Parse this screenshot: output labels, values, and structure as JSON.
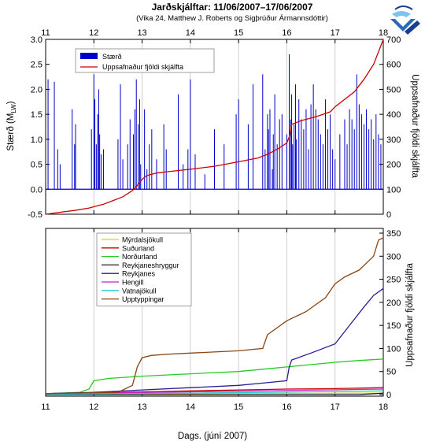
{
  "header": {
    "title": "Jarðskjálftar: 11/06/2007–17/06/2007",
    "subtitle": "(Vika 24, Matthew J. Roberts og Sigþrúður Ármannsdóttir)"
  },
  "logo": {
    "name": "vedurstofa-logo",
    "colors": [
      "#2a6bb8",
      "#7fc4e8",
      "#1a3f8f"
    ]
  },
  "chart_data": [
    {
      "type": "bar",
      "panel": "top",
      "xlim": [
        11,
        18
      ],
      "x_ticks": [
        "11",
        "12",
        "13",
        "14",
        "15",
        "16",
        "17",
        "18"
      ],
      "ylabel": "Stærð (M",
      "ylabel_sub": "LW",
      "ylabel_end": ")",
      "ylim": [
        -0.5,
        3.0
      ],
      "y_ticks": [
        "-0.5",
        "0.0",
        "0.5",
        "1.0",
        "1.5",
        "2.0",
        "2.5",
        "3.0"
      ],
      "y2label": "Uppsafnaður fjöldi skjálfta",
      "y2lim": [
        0,
        700
      ],
      "y2_ticks": [
        "0",
        "100",
        "200",
        "300",
        "400",
        "500",
        "600",
        "700"
      ],
      "grid": "vertical",
      "legend_placement": "top-left",
      "legend": [
        {
          "name": "Stærð",
          "color": "#0000cc"
        },
        {
          "name": "Uppsafnaður fjöldi skjálfta",
          "color": "#cc0000"
        }
      ],
      "bars": {
        "name": "Stærð",
        "color": "#0000cc",
        "x": [
          11.05,
          11.18,
          11.25,
          11.3,
          11.55,
          11.6,
          11.62,
          11.95,
          12.0,
          12.02,
          12.05,
          12.08,
          12.1,
          12.12,
          12.15,
          12.2,
          12.5,
          12.55,
          12.6,
          12.7,
          12.75,
          12.82,
          12.85,
          12.88,
          12.92,
          12.95,
          12.97,
          13.05,
          13.1,
          13.15,
          13.2,
          13.3,
          13.45,
          13.5,
          13.75,
          13.85,
          13.95,
          14.0,
          14.1,
          14.3,
          14.5,
          14.7,
          14.95,
          15.0,
          15.2,
          15.3,
          15.5,
          15.55,
          15.6,
          15.62,
          15.65,
          15.7,
          15.72,
          15.75,
          15.8,
          15.85,
          15.9,
          16.0,
          16.05,
          16.08,
          16.1,
          16.12,
          16.15,
          16.18,
          16.2,
          16.25,
          16.3,
          16.35,
          16.4,
          16.45,
          16.5,
          16.55,
          16.6,
          16.65,
          16.7,
          16.75,
          16.8,
          16.85,
          16.9,
          16.95,
          17.0,
          17.1,
          17.2,
          17.25,
          17.3,
          17.35,
          17.4,
          17.45,
          17.5,
          17.55,
          17.6,
          17.65,
          17.7,
          17.75,
          17.8,
          17.85,
          17.9,
          17.95
        ],
        "values": [
          2.2,
          2.15,
          0.8,
          0.5,
          1.6,
          0.9,
          1.3,
          1.2,
          2.3,
          1.8,
          0.9,
          1.5,
          2.0,
          1.1,
          0.7,
          0.8,
          1.0,
          2.1,
          0.6,
          0.9,
          1.4,
          1.1,
          1.6,
          2.2,
          1.3,
          1.8,
          0.5,
          1.6,
          0.4,
          0.9,
          1.2,
          0.6,
          1.3,
          0.8,
          1.9,
          0.5,
          0.8,
          2.2,
          0.7,
          0.3,
          1.2,
          0.9,
          1.5,
          1.8,
          1.3,
          2.1,
          2.3,
          0.8,
          1.5,
          1.2,
          1.6,
          0.4,
          1.1,
          1.9,
          0.9,
          1.4,
          1.5,
          1.1,
          2.7,
          1.4,
          1.9,
          0.9,
          1.3,
          2.1,
          1.0,
          1.8,
          1.4,
          1.2,
          1.6,
          0.8,
          1.7,
          2.1,
          1.6,
          1.4,
          1.1,
          0.9,
          1.8,
          1.2,
          1.5,
          0.8,
          0.6,
          1.1,
          1.4,
          0.9,
          1.6,
          1.4,
          1.2,
          2.3,
          1.7,
          1.5,
          1.3,
          1.6,
          1.2,
          1.4,
          1.0,
          1.5,
          1.1,
          0.9
        ]
      },
      "line": {
        "name": "Uppsafnaður fjöldi skjálfta",
        "color": "#cc0000",
        "x": [
          11.0,
          11.3,
          11.6,
          11.9,
          12.0,
          12.2,
          12.4,
          12.6,
          12.8,
          12.9,
          13.0,
          13.1,
          13.3,
          13.6,
          14.0,
          14.5,
          15.0,
          15.4,
          15.6,
          15.8,
          16.0,
          16.05,
          16.1,
          16.3,
          16.6,
          16.9,
          17.0,
          17.2,
          17.4,
          17.6,
          17.8,
          17.9,
          18.0
        ],
        "values": [
          0,
          8,
          15,
          25,
          30,
          40,
          55,
          70,
          95,
          115,
          140,
          155,
          165,
          172,
          180,
          192,
          210,
          225,
          240,
          260,
          285,
          310,
          360,
          375,
          390,
          410,
          430,
          460,
          490,
          540,
          600,
          650,
          700
        ]
      }
    },
    {
      "type": "line",
      "panel": "bottom",
      "xlim": [
        11,
        18
      ],
      "x_ticks": [
        "11",
        "12",
        "13",
        "14",
        "15",
        "16",
        "17",
        "18"
      ],
      "xlabel": "Dags. (júní 2007)",
      "y2label": "Uppsafnaður fjöldi skjálfta",
      "y2lim": [
        0,
        350
      ],
      "y2_ticks": [
        "0",
        "50",
        "100",
        "150",
        "200",
        "250",
        "300",
        "350"
      ],
      "grid": "vertical",
      "legend_placement": "top-left",
      "series": [
        {
          "name": "Mýrdalsjökull",
          "color": "#e6d200",
          "x": [
            11.0,
            14.0,
            18.0
          ],
          "values": [
            1,
            2,
            3
          ]
        },
        {
          "name": "Suðurland",
          "color": "#cc0000",
          "x": [
            11.0,
            12.0,
            13.0,
            14.0,
            15.0,
            16.0,
            17.0,
            18.0
          ],
          "values": [
            2,
            4,
            6,
            8,
            10,
            12,
            13,
            15
          ]
        },
        {
          "name": "Norðurland",
          "color": "#22cc22",
          "x": [
            11.0,
            11.5,
            11.7,
            11.9,
            12.0,
            12.3,
            13.0,
            14.0,
            15.0,
            15.5,
            16.0,
            16.5,
            17.0,
            17.5,
            18.0
          ],
          "values": [
            2,
            4,
            5,
            12,
            30,
            35,
            40,
            45,
            50,
            55,
            60,
            65,
            70,
            74,
            77
          ]
        },
        {
          "name": "Reykjaneshryggur",
          "color": "#202020",
          "x": [
            11.0,
            17.5,
            18.0
          ],
          "values": [
            0,
            0,
            3
          ]
        },
        {
          "name": "Reykjanes",
          "color": "#2a1a99",
          "x": [
            11.0,
            12.0,
            13.0,
            14.0,
            15.0,
            15.5,
            16.0,
            16.05,
            16.1,
            16.5,
            17.0,
            17.3,
            17.6,
            17.8,
            18.0
          ],
          "values": [
            2,
            5,
            10,
            15,
            20,
            25,
            30,
            60,
            75,
            90,
            110,
            150,
            190,
            215,
            230
          ]
        },
        {
          "name": "Hengill",
          "color": "#cc22cc",
          "x": [
            11.0,
            14.0,
            18.0
          ],
          "values": [
            1,
            6,
            12
          ]
        },
        {
          "name": "Vatnajökull",
          "color": "#22cccc",
          "x": [
            11.0,
            14.0,
            18.0
          ],
          "values": [
            1,
            3,
            8
          ]
        },
        {
          "name": "Upptyppingar",
          "color": "#8b4513",
          "x": [
            11.0,
            12.5,
            12.8,
            12.9,
            13.0,
            13.2,
            13.6,
            14.0,
            15.0,
            15.5,
            15.6,
            16.0,
            16.4,
            16.8,
            17.0,
            17.2,
            17.5,
            17.8,
            17.9,
            18.0
          ],
          "values": [
            2,
            5,
            20,
            60,
            80,
            85,
            88,
            90,
            95,
            100,
            130,
            160,
            180,
            210,
            240,
            255,
            270,
            300,
            335,
            340
          ]
        }
      ]
    }
  ]
}
